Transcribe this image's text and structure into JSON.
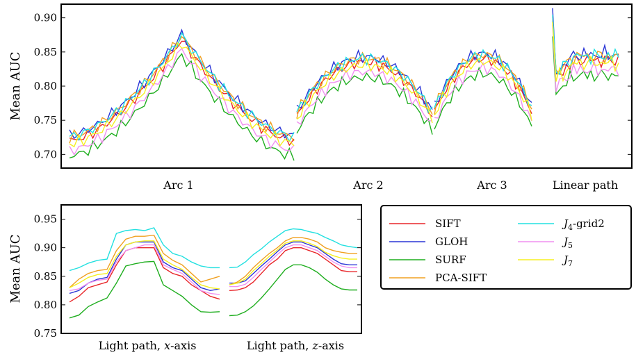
{
  "chart_data": [
    {
      "type": "line",
      "ylabel": "Mean AUC",
      "ylim": [
        0.68,
        0.92
      ],
      "yticks": [
        "0.70",
        "0.75",
        "0.80",
        "0.85",
        "0.90"
      ],
      "segments": [
        {
          "label": "Arc 1",
          "n": 49,
          "peak": 0.5,
          "lo": 0.72,
          "hi": 0.868
        },
        {
          "label": "Arc 2",
          "n": 34,
          "peak": 0.5,
          "lo": 0.756,
          "hi": 0.835
        },
        {
          "label": "Arc 3",
          "n": 25,
          "peak": 0.5,
          "lo": 0.762,
          "hi": 0.84
        },
        {
          "label": "Linear path",
          "n": 20,
          "peak": 0.0,
          "lo": 0.82,
          "hi": 0.85
        }
      ],
      "series_offsets": {
        "SIFT": 0.0,
        "GLOH": 0.008,
        "SURF": -0.022,
        "PCA-SIFT": 0.006,
        "J4-grid2": 0.006,
        "J5": -0.014,
        "J7": -0.004
      }
    },
    {
      "type": "line",
      "ylabel": "Mean AUC",
      "ylim": [
        0.75,
        0.975
      ],
      "yticks": [
        "0.75",
        "0.80",
        "0.85",
        "0.90",
        "0.95"
      ],
      "segments": [
        {
          "label": "Light path, x-axis",
          "label_pre": "Light path, ",
          "label_var": "x",
          "label_post": "-axis",
          "n": 17
        },
        {
          "label": "Light path, z-axis",
          "label_pre": "Light path, ",
          "label_var": "z",
          "label_post": "-axis",
          "n": 17
        }
      ],
      "series": [
        {
          "name": "SIFT",
          "color": "#e8262a",
          "x": [
            0.805,
            0.815,
            0.83,
            0.835,
            0.84,
            0.87,
            0.895,
            0.9,
            0.9,
            0.9,
            0.865,
            0.855,
            0.85,
            0.835,
            0.825,
            0.815,
            0.81
          ],
          "z": [
            0.825,
            0.826,
            0.83,
            0.84,
            0.855,
            0.87,
            0.88,
            0.895,
            0.9,
            0.9,
            0.895,
            0.89,
            0.88,
            0.87,
            0.86,
            0.858,
            0.858
          ]
        },
        {
          "name": "GLOH",
          "color": "#2a35d6",
          "x": [
            0.82,
            0.825,
            0.838,
            0.845,
            0.848,
            0.88,
            0.905,
            0.91,
            0.91,
            0.91,
            0.875,
            0.865,
            0.86,
            0.845,
            0.83,
            0.825,
            0.828
          ],
          "z": [
            0.838,
            0.838,
            0.842,
            0.855,
            0.868,
            0.88,
            0.893,
            0.905,
            0.91,
            0.91,
            0.905,
            0.9,
            0.89,
            0.88,
            0.872,
            0.87,
            0.87
          ]
        },
        {
          "name": "SURF",
          "color": "#1fae1f",
          "x": [
            0.777,
            0.782,
            0.797,
            0.805,
            0.812,
            0.838,
            0.868,
            0.872,
            0.875,
            0.876,
            0.835,
            0.825,
            0.815,
            0.8,
            0.788,
            0.787,
            0.788
          ],
          "z": [
            0.781,
            0.782,
            0.788,
            0.798,
            0.812,
            0.828,
            0.845,
            0.862,
            0.87,
            0.87,
            0.865,
            0.857,
            0.845,
            0.835,
            0.828,
            0.826,
            0.826
          ]
        },
        {
          "name": "PCA-SIFT",
          "color": "#f0a020",
          "x": [
            0.83,
            0.845,
            0.855,
            0.86,
            0.862,
            0.895,
            0.915,
            0.92,
            0.92,
            0.922,
            0.89,
            0.878,
            0.87,
            0.855,
            0.84,
            0.845,
            0.85
          ],
          "z": [
            0.835,
            0.84,
            0.85,
            0.865,
            0.878,
            0.89,
            0.9,
            0.912,
            0.918,
            0.918,
            0.915,
            0.91,
            0.9,
            0.895,
            0.892,
            0.89,
            0.89
          ]
        },
        {
          "name": "J4-grid2",
          "color": "#22e0e0",
          "x": [
            0.86,
            0.865,
            0.873,
            0.878,
            0.88,
            0.925,
            0.93,
            0.932,
            0.93,
            0.935,
            0.905,
            0.89,
            0.885,
            0.875,
            0.868,
            0.865,
            0.865
          ],
          "z": [
            0.865,
            0.866,
            0.875,
            0.888,
            0.898,
            0.91,
            0.92,
            0.93,
            0.933,
            0.932,
            0.928,
            0.925,
            0.918,
            0.912,
            0.905,
            0.902,
            0.9
          ]
        },
        {
          "name": "J5",
          "color": "#f090f0",
          "x": [
            0.825,
            0.828,
            0.838,
            0.843,
            0.845,
            0.875,
            0.895,
            0.9,
            0.905,
            0.905,
            0.87,
            0.862,
            0.855,
            0.84,
            0.825,
            0.82,
            0.818
          ],
          "z": [
            0.832,
            0.832,
            0.836,
            0.848,
            0.862,
            0.875,
            0.888,
            0.9,
            0.905,
            0.905,
            0.9,
            0.895,
            0.885,
            0.875,
            0.868,
            0.865,
            0.865
          ]
        },
        {
          "name": "J7",
          "color": "#f5f020",
          "x": [
            0.83,
            0.838,
            0.848,
            0.853,
            0.855,
            0.885,
            0.905,
            0.91,
            0.912,
            0.912,
            0.88,
            0.87,
            0.862,
            0.848,
            0.835,
            0.83,
            0.828
          ],
          "z": [
            0.835,
            0.838,
            0.845,
            0.86,
            0.872,
            0.885,
            0.896,
            0.908,
            0.912,
            0.912,
            0.908,
            0.902,
            0.892,
            0.886,
            0.882,
            0.88,
            0.88
          ]
        }
      ]
    }
  ],
  "legend": [
    {
      "name": "SIFT",
      "color": "#e8262a",
      "pre": "SIFT",
      "sub": "",
      "post": ""
    },
    {
      "name": "GLOH",
      "color": "#2a35d6",
      "pre": "GLOH",
      "sub": "",
      "post": ""
    },
    {
      "name": "SURF",
      "color": "#1fae1f",
      "pre": "SURF",
      "sub": "",
      "post": ""
    },
    {
      "name": "PCA-SIFT",
      "color": "#f0a020",
      "pre": "PCA-SIFT",
      "sub": "",
      "post": ""
    },
    {
      "name": "J4-grid2",
      "color": "#22e0e0",
      "pre": "J",
      "sub": "4",
      "post": "-grid2"
    },
    {
      "name": "J5",
      "color": "#f090f0",
      "pre": "J",
      "sub": "5",
      "post": ""
    },
    {
      "name": "J7",
      "color": "#f5f020",
      "pre": "J",
      "sub": "7",
      "post": ""
    }
  ]
}
